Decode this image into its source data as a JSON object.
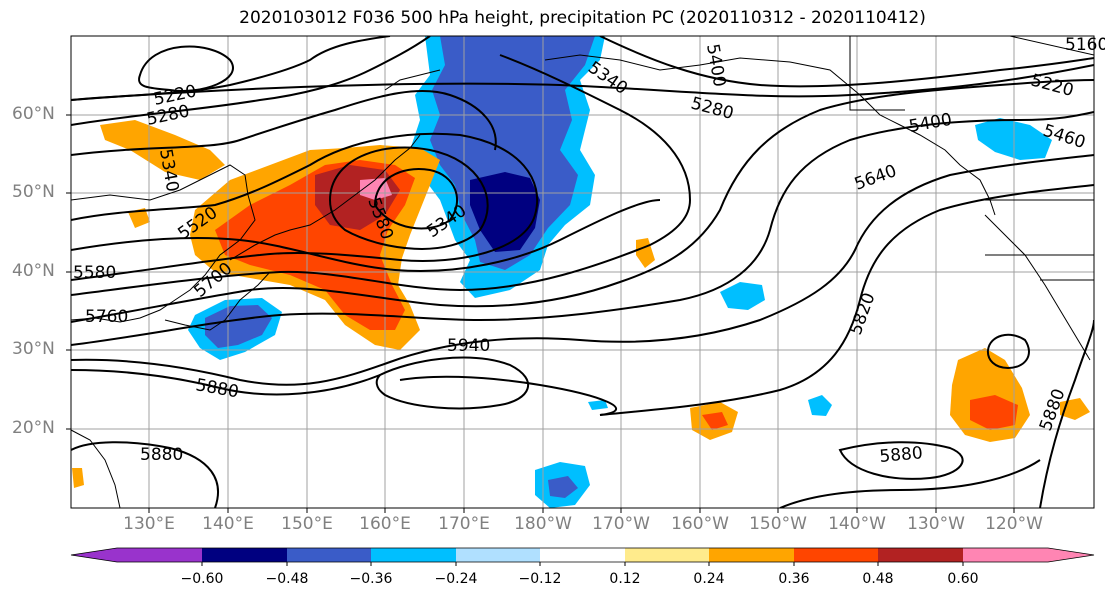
{
  "title": "2020103012 F036 500 hPa height, precipitation PC (2020110312 - 2020110412)",
  "map": {
    "lat_labels": [
      "60°N",
      "50°N",
      "40°N",
      "30°N",
      "20°N"
    ],
    "lon_labels": [
      "130°E",
      "140°E",
      "150°E",
      "160°E",
      "170°E",
      "180°W",
      "170°W",
      "160°W",
      "150°W",
      "140°W",
      "130°W",
      "120°W"
    ],
    "contour_labels": [
      "5220",
      "5280",
      "5340",
      "5520",
      "5400",
      "5460",
      "5640",
      "5580",
      "5700",
      "5760",
      "5820",
      "5880",
      "5940",
      "5880",
      "5880",
      "5880",
      "5340",
      "5280",
      "5220",
      "5340",
      "5580",
      "5400",
      "5160"
    ],
    "line_color": "#000000",
    "grid_color": "#a0a0a0"
  },
  "colorbar": {
    "colors": [
      "#9933cc",
      "#000080",
      "#3a5cc8",
      "#00bfff",
      "#b0e0ff",
      "#ffffff",
      "#ffeb8c",
      "#ffa500",
      "#ff4500",
      "#b22222",
      "#ff85b3"
    ],
    "tick_labels": [
      "−0.60",
      "−0.48",
      "−0.36",
      "−0.24",
      "−0.12",
      "0.12",
      "0.24",
      "0.36",
      "0.48",
      "0.60"
    ]
  }
}
